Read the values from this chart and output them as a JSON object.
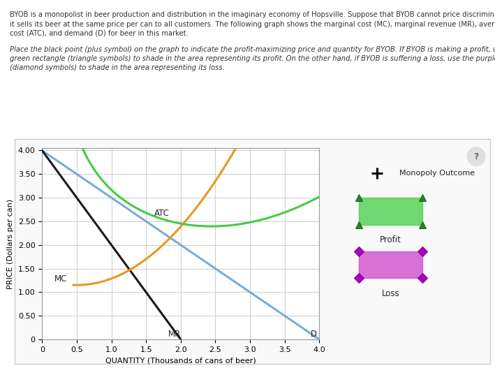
{
  "xlabel": "QUANTITY (Thousands of cans of beer)",
  "ylabel": "PRICE (Dollars per can)",
  "xlim": [
    0,
    4.0
  ],
  "ylim": [
    0,
    4.05
  ],
  "yticks": [
    0,
    0.5,
    1.0,
    1.5,
    2.0,
    2.5,
    3.0,
    3.5,
    4.0
  ],
  "xticks": [
    0,
    0.5,
    1.0,
    1.5,
    2.0,
    2.5,
    3.0,
    3.5,
    4.0
  ],
  "demand_color": "#7aadd4",
  "mr_color": "#1a1a1a",
  "mc_color": "#e89820",
  "atc_color": "#44cc44",
  "demand_label": "D",
  "mr_label": "MR",
  "mc_label": "MC",
  "atc_label": "ATC",
  "bg_color": "#f5f5f5",
  "plot_bg_color": "#ffffff",
  "grid_color": "#cccccc",
  "figsize": [
    7.09,
    5.37
  ],
  "dpi": 100,
  "para1": "BYOB is a monopolist in beer production and distribution in the imaginary economy of Hopsville. Suppose that BYOB cannot price discriminate; that is,",
  "para1b": "it sells its beer at the same price per can to all customers. The following graph shows the marginal cost (MC), marginal revenue (MR), average total",
  "para1c": "cost (ATC), and demand (D) for beer in this market.",
  "para2": "Place the black point (plus symbol) on the graph to indicate the profit-maximizing price and quantity for BYOB. If BYOB is making a profit, use the",
  "para2b": "green rectangle (triangle symbols) to shade in the area representing its profit. On the other hand, if BYOB is suffering a loss, use the purple rectangle",
  "para2c": "(diamond symbols) to shade in the area representing its loss."
}
